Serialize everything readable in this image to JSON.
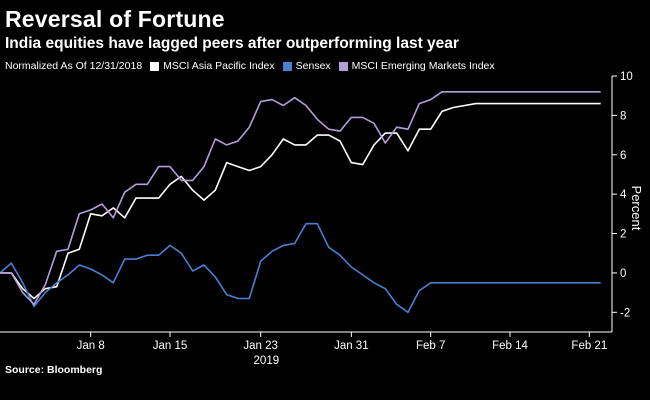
{
  "title": "Reversal of Fortune",
  "subtitle": "India equities have lagged peers after outperforming last year",
  "legend": {
    "note": "Normalized As Of 12/31/2018",
    "items": [
      {
        "label": "MSCI Asia Pacific Index",
        "color": "#ffffff"
      },
      {
        "label": "Sensex",
        "color": "#4a7fd4"
      },
      {
        "label": "MSCI Emerging Markets Index",
        "color": "#b39ddb"
      }
    ]
  },
  "source": "Source: Bloomberg",
  "chart_data": {
    "type": "line",
    "title": "Reversal of Fortune",
    "ylabel": "Percent",
    "xlabel": "2019",
    "ylim": [
      -3,
      10
    ],
    "yticks": [
      -2,
      0,
      2,
      4,
      6,
      8,
      10
    ],
    "xticks": [
      {
        "label": "Jan 8",
        "t": 6
      },
      {
        "label": "Jan 15",
        "t": 13
      },
      {
        "label": "Jan 23",
        "t": 21
      },
      {
        "label": "Jan 31",
        "t": 29
      },
      {
        "label": "Feb 7",
        "t": 36
      },
      {
        "label": "Feb 14",
        "t": 43
      },
      {
        "label": "Feb 21",
        "t": 50
      }
    ],
    "year_label": "2019",
    "x_range": [
      -2,
      52
    ],
    "t": [
      -2,
      -1,
      0,
      1,
      2,
      3,
      4,
      5,
      6,
      7,
      8,
      9,
      10,
      11,
      12,
      13,
      14,
      15,
      16,
      17,
      18,
      19,
      20,
      21,
      22,
      23,
      24,
      25,
      26,
      27,
      28,
      29,
      30,
      31,
      32,
      33,
      34,
      35,
      36,
      37,
      38,
      39,
      40,
      41,
      42,
      43,
      44,
      45,
      46,
      47,
      48,
      49,
      50,
      51
    ],
    "series": [
      {
        "name": "MSCI Asia Pacific Index",
        "color": "#ffffff",
        "values": [
          0,
          0,
          -0.8,
          -1.3,
          -0.8,
          -0.7,
          1.0,
          1.2,
          3.0,
          2.9,
          3.3,
          2.8,
          3.8,
          3.8,
          3.8,
          4.5,
          4.9,
          4.2,
          3.7,
          4.2,
          5.6,
          5.4,
          5.2,
          5.4,
          6.0,
          6.8,
          6.5,
          6.5,
          7.0,
          7.0,
          6.7,
          5.6,
          5.5,
          6.5,
          7.1,
          7.1,
          6.2,
          7.3,
          7.3,
          8.2,
          8.4,
          8.5,
          8.6,
          8.6,
          8.6,
          8.6,
          8.6,
          8.6,
          8.6,
          8.6,
          8.6,
          8.6,
          8.6,
          8.6
        ]
      },
      {
        "name": "Sensex",
        "color": "#4a7fd4",
        "values": [
          0,
          0.5,
          -0.5,
          -1.7,
          -1.0,
          -0.5,
          -0.1,
          0.4,
          0.2,
          -0.1,
          -0.5,
          0.7,
          0.7,
          0.9,
          0.9,
          1.4,
          1.0,
          0.1,
          0.4,
          -0.2,
          -1.1,
          -1.3,
          -1.3,
          0.6,
          1.1,
          1.4,
          1.5,
          2.5,
          2.5,
          1.3,
          0.9,
          0.3,
          -0.1,
          -0.5,
          -0.8,
          -1.6,
          -2.0,
          -0.9,
          -0.5,
          -0.5,
          -0.5,
          -0.5,
          -0.5,
          -0.5,
          -0.5,
          -0.5,
          -0.5,
          -0.5,
          -0.5,
          -0.5,
          -0.5,
          -0.5,
          -0.5,
          -0.5
        ]
      },
      {
        "name": "MSCI Emerging Markets Index",
        "color": "#b39ddb",
        "values": [
          0,
          0,
          -1.0,
          -1.6,
          -0.6,
          1.1,
          1.2,
          3.0,
          3.2,
          3.5,
          2.8,
          4.1,
          4.5,
          4.5,
          5.4,
          5.4,
          4.7,
          4.7,
          5.4,
          6.8,
          6.5,
          6.7,
          7.4,
          8.7,
          8.8,
          8.5,
          8.9,
          8.5,
          7.8,
          7.3,
          7.2,
          7.9,
          7.9,
          7.6,
          6.6,
          7.4,
          7.3,
          8.6,
          8.8,
          9.2,
          9.2,
          9.2,
          9.2,
          9.2,
          9.2,
          9.2,
          9.2,
          9.2,
          9.2,
          9.2,
          9.2,
          9.2,
          9.2,
          9.2
        ]
      }
    ]
  }
}
